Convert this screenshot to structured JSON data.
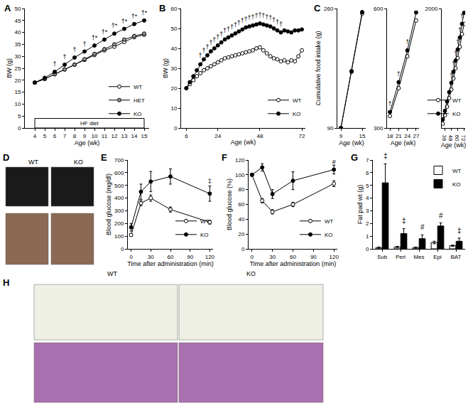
{
  "chart_data": [
    {
      "type": "line",
      "panel": "A",
      "x_label": "Age (wk)",
      "y_label": "BW (g)",
      "x": [
        4,
        5,
        6,
        7,
        8,
        9,
        10,
        11,
        12,
        13,
        14,
        15
      ],
      "xlim": [
        3,
        15.5
      ],
      "xticks": [
        4,
        5,
        6,
        7,
        8,
        9,
        10,
        11,
        12,
        13,
        14,
        15
      ],
      "ylim": [
        0,
        50
      ],
      "yticks": [
        0,
        5,
        10,
        15,
        20,
        25,
        30,
        35,
        40,
        45,
        50
      ],
      "legend": "bottom right",
      "series": [
        {
          "name": "WT",
          "color": "#ffffff",
          "marker": "circle",
          "values": [
            19,
            20.5,
            22.5,
            24.5,
            26.5,
            28.5,
            30.5,
            32.5,
            34,
            36,
            38,
            39
          ]
        },
        {
          "name": "HET",
          "color": "#999999",
          "marker": "circle",
          "values": [
            19,
            20.5,
            22.5,
            24.5,
            26.5,
            28.8,
            31,
            33,
            35,
            37,
            38.5,
            39.5
          ]
        },
        {
          "name": "KO",
          "color": "#000000",
          "marker": "circle",
          "values": [
            19,
            21,
            23.5,
            26.5,
            29.5,
            32,
            34.5,
            37,
            39.5,
            41.5,
            43.5,
            45
          ]
        }
      ],
      "significance": {
        "x": [
          6,
          7,
          8,
          9,
          10,
          11,
          12,
          13,
          14,
          15
        ],
        "y": [
          26.5,
          29.5,
          32.5,
          35,
          37.5,
          40,
          42.5,
          44.5,
          46.5,
          48
        ],
        "text": [
          "†",
          "†",
          "†",
          "†",
          "†*",
          "†*",
          "†*",
          "†*",
          "†*",
          "†*"
        ]
      },
      "box": {
        "text": "HF diet",
        "x0": 4,
        "x1": 15,
        "y0": 0,
        "y1": 4
      }
    },
    {
      "type": "line",
      "panel": "B",
      "x_label": "Age (wk)",
      "y_label": "BW (g)",
      "x": [
        6,
        8,
        10,
        12,
        14,
        16,
        18,
        20,
        22,
        24,
        26,
        28,
        30,
        32,
        34,
        36,
        38,
        40,
        42,
        44,
        46,
        48,
        50,
        52,
        54,
        56,
        58,
        60,
        62,
        64,
        66,
        68,
        70,
        72
      ],
      "xlim": [
        3,
        74
      ],
      "xticks": [
        6,
        24,
        48,
        72
      ],
      "ylim": [
        0,
        60
      ],
      "yticks": [
        0,
        10,
        20,
        30,
        40,
        50,
        60
      ],
      "legend": "bottom right",
      "series": [
        {
          "name": "WT",
          "color": "#ffffff",
          "marker": "circle",
          "values": [
            20,
            22,
            24,
            26,
            27.5,
            29,
            30,
            31,
            32,
            33,
            34,
            35,
            35.5,
            36,
            36.5,
            37,
            37.5,
            38,
            38.5,
            39,
            40,
            40.5,
            39,
            37.5,
            36,
            35,
            34.5,
            33.5,
            34,
            33,
            34,
            33.5,
            36,
            39
          ]
        },
        {
          "name": "KO",
          "color": "#000000",
          "marker": "circle",
          "values": [
            20,
            23,
            26,
            29,
            32,
            34.5,
            36.5,
            38.5,
            40,
            41.5,
            43,
            44.5,
            45.5,
            46.5,
            47.5,
            48.5,
            49.5,
            50.5,
            51,
            51.5,
            52,
            52.5,
            52,
            51.5,
            51,
            50,
            49,
            48,
            49,
            48.5,
            48,
            49,
            49,
            49.5
          ]
        }
      ],
      "significance": {
        "x": [
          14,
          16,
          18,
          20,
          22,
          24,
          26,
          28,
          30,
          32,
          34,
          36,
          38,
          40,
          42,
          44,
          46,
          48,
          50,
          52,
          54,
          56,
          58,
          60
        ],
        "y": [
          36,
          38.5,
          40.5,
          42.5,
          44,
          45.5,
          47,
          48.5,
          49.5,
          50.5,
          51.5,
          52.5,
          53.5,
          54.5,
          55,
          55.5,
          56,
          56.5,
          56,
          55.5,
          55,
          54,
          53,
          52
        ],
        "text": "†"
      }
    },
    {
      "type": "line",
      "panel": "C",
      "x_label": "Age (wk)",
      "y_label": "Cumulative food intake (g)",
      "x": [
        9,
        12,
        15
      ],
      "xlim": [
        8,
        16
      ],
      "xticks": [
        9,
        15
      ],
      "ylim": [
        90,
        260
      ],
      "yticks": [
        90,
        260
      ],
      "series": [
        {
          "name": "WT",
          "color": "#ffffff",
          "marker": "circle",
          "values": [
            90,
            170,
            253
          ]
        },
        {
          "name": "KO",
          "color": "#000000",
          "marker": "circle",
          "values": [
            90,
            171,
            255
          ]
        }
      ],
      "significance": {
        "x": [
          15
        ],
        "y": [
          262
        ],
        "text": "*"
      }
    },
    {
      "type": "line",
      "x_label": "Age (wk)",
      "x": [
        18,
        21,
        24,
        27
      ],
      "xlim": [
        17,
        28
      ],
      "xticks": [
        18,
        21,
        24,
        27
      ],
      "ylim": [
        300,
        600
      ],
      "yticks": [
        300,
        600
      ],
      "series": [
        {
          "name": "WT",
          "color": "#ffffff",
          "marker": "circle",
          "values": [
            330,
            400,
            480,
            570
          ]
        },
        {
          "name": "KO",
          "color": "#000000",
          "marker": "circle",
          "values": [
            340,
            415,
            495,
            590
          ]
        }
      ],
      "significance": {
        "x": [
          18,
          21,
          24,
          27
        ],
        "y": [
          360,
          435,
          515,
          605
        ],
        "text": "†"
      }
    },
    {
      "type": "line",
      "x_label": "Age (wk)",
      "x": [
        32,
        36,
        40,
        44,
        48,
        52,
        56,
        60,
        64,
        68,
        72
      ],
      "xlim": [
        30,
        74
      ],
      "xticks": [
        36,
        48,
        60,
        72
      ],
      "ylim": [
        600,
        2000
      ],
      "yticks": [
        2000
      ],
      "legend": "bottom right",
      "series": [
        {
          "name": "WT",
          "color": "#ffffff",
          "marker": "circle",
          "values": [
            650,
            750,
            850,
            950,
            1050,
            1180,
            1300,
            1420,
            1550,
            1700,
            1820
          ]
        },
        {
          "name": "KO",
          "color": "#000000",
          "marker": "circle",
          "values": [
            700,
            800,
            910,
            1020,
            1130,
            1260,
            1390,
            1520,
            1660,
            1820,
            1950
          ]
        }
      ],
      "significance": {
        "x": [
          48,
          52,
          56,
          60,
          64,
          68,
          72
        ],
        "y": [
          1210,
          1340,
          1470,
          1600,
          1740,
          1900,
          2030
        ],
        "text": "†"
      }
    },
    {
      "type": "line",
      "panel": "E",
      "x_label": "Time after administration (min)",
      "y_label": "Blood glucose (mg/dl)",
      "x": [
        0,
        15,
        30,
        60,
        120
      ],
      "xlim": [
        -5,
        125
      ],
      "xticks": [
        0,
        30,
        60,
        90,
        120
      ],
      "ylim": [
        0,
        700
      ],
      "yticks": [
        0,
        100,
        200,
        300,
        400,
        500,
        600,
        700
      ],
      "legend": "bottom right",
      "series": [
        {
          "name": "WT",
          "color": "#ffffff",
          "marker": "circle",
          "values": [
            110,
            360,
            400,
            310,
            210
          ],
          "errors": [
            10,
            20,
            25,
            20,
            15
          ]
        },
        {
          "name": "KO",
          "color": "#000000",
          "marker": "circle",
          "values": [
            170,
            450,
            530,
            570,
            435
          ],
          "errors": [
            30,
            60,
            80,
            60,
            60
          ]
        }
      ],
      "significance": {
        "x": [
          120
        ],
        "y": [
          530
        ],
        "text": "‡"
      }
    },
    {
      "type": "line",
      "panel": "F",
      "x_label": "Time after administration (min)",
      "y_label": "Blood glucose (%)",
      "x": [
        0,
        15,
        30,
        60,
        120
      ],
      "xlim": [
        -5,
        125
      ],
      "xticks": [
        0,
        30,
        60,
        90,
        120
      ],
      "ylim": [
        0,
        120
      ],
      "yticks": [
        0,
        20,
        40,
        60,
        80,
        100,
        120
      ],
      "legend": "bottom right",
      "series": [
        {
          "name": "WT",
          "color": "#ffffff",
          "marker": "circle",
          "values": [
            100,
            65,
            50,
            60,
            88
          ],
          "errors": [
            0,
            3,
            3,
            3,
            4
          ]
        },
        {
          "name": "KO",
          "color": "#000000",
          "marker": "circle",
          "values": [
            100,
            110,
            74,
            92,
            107
          ],
          "errors": [
            0,
            5,
            6,
            12,
            6
          ]
        }
      ],
      "significance": {
        "x": [
          120
        ],
        "y": [
          116
        ],
        "text": "#"
      }
    },
    {
      "type": "bar",
      "panel": "G",
      "y_label": "Fat pad wt (g)",
      "categories": [
        "Sub",
        "Peri",
        "Mes",
        "Epi",
        "BAT"
      ],
      "ylim": [
        0,
        7
      ],
      "yticks": [
        0,
        1,
        2,
        3,
        4,
        5,
        6,
        7
      ],
      "legend": "top right",
      "series": [
        {
          "name": "WT",
          "color": "#ffffff",
          "values": [
            0.1,
            0.15,
            0.1,
            0.5,
            0.25
          ],
          "errors": [
            0.05,
            0.05,
            0.05,
            0.1,
            0.05
          ]
        },
        {
          "name": "KO",
          "color": "#000000",
          "values": [
            5.2,
            1.2,
            0.8,
            1.8,
            0.6
          ],
          "errors": [
            1.5,
            0.4,
            0.3,
            0.25,
            0.25
          ]
        }
      ],
      "significance": {
        "y": [
          6.9,
          1.8,
          1.3,
          2.2,
          1.0
        ],
        "text": [
          "‡",
          "‡",
          "#",
          "#",
          "‡"
        ]
      }
    }
  ],
  "photos": [
    {
      "panel": "D",
      "labels": [
        "WT",
        "KO"
      ]
    },
    {
      "panel": "H",
      "labels": [
        "WT",
        "KO"
      ]
    }
  ]
}
